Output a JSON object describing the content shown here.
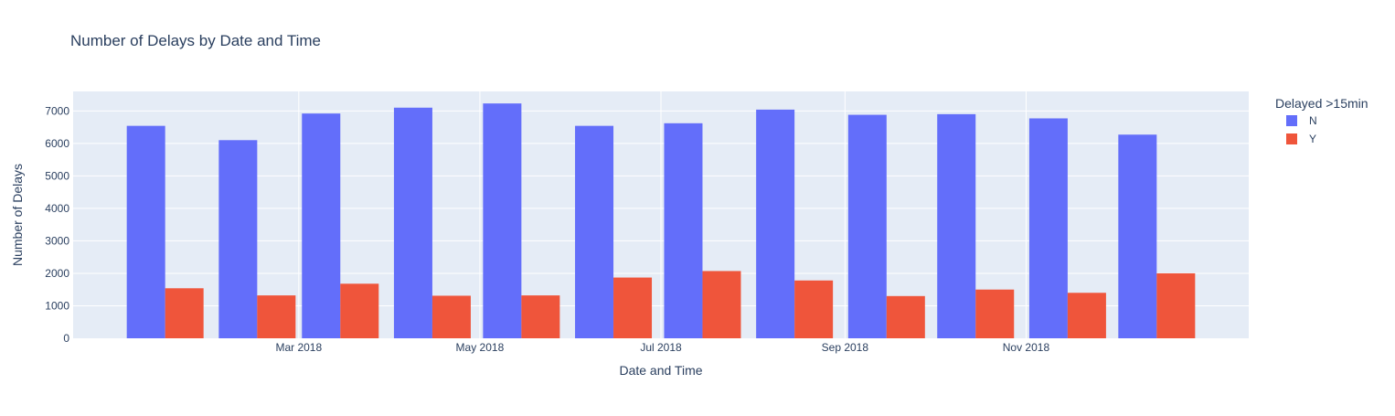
{
  "chart_data": {
    "type": "bar",
    "title": "Number of Delays by Date and Time",
    "xlabel": "Date and Time",
    "ylabel": "Number of Delays",
    "x": [
      "2018-01",
      "2018-02",
      "2018-03",
      "2018-04",
      "2018-05",
      "2018-06",
      "2018-07",
      "2018-08",
      "2018-09",
      "2018-10",
      "2018-11",
      "2018-12"
    ],
    "x_tick_labels": [
      "Mar 2018",
      "May 2018",
      "Jul 2018",
      "Sep 2018",
      "Nov 2018"
    ],
    "x_tick_dates": [
      "2018-03",
      "2018-05",
      "2018-07",
      "2018-09",
      "2018-11"
    ],
    "y_ticks": [
      0,
      1000,
      2000,
      3000,
      4000,
      5000,
      6000,
      7000
    ],
    "ylim": [
      0,
      7600
    ],
    "grid": true,
    "legend": {
      "title": "Delayed >15min",
      "position": "right"
    },
    "series": [
      {
        "name": "N",
        "color": "#636efa",
        "values": [
          6540,
          6100,
          6920,
          7100,
          7230,
          6540,
          6620,
          7040,
          6880,
          6900,
          6770,
          6270
        ]
      },
      {
        "name": "Y",
        "color": "#ef553b",
        "values": [
          1540,
          1320,
          1680,
          1310,
          1320,
          1870,
          2070,
          1780,
          1300,
          1500,
          1400,
          2000
        ]
      }
    ],
    "plot_bgcolor": "#e5ecf6"
  }
}
